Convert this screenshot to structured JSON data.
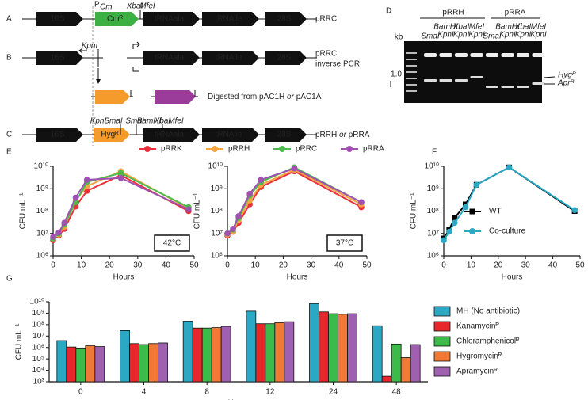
{
  "panel_labels": [
    "A",
    "B",
    "C",
    "D",
    "E",
    "F",
    "G"
  ],
  "diagram": {
    "row_a": {
      "genes": [
        "16S",
        "Cmᴿ",
        "tRNAala",
        "tRNAile",
        "28S"
      ],
      "promoter": "P",
      "promoter_sub": "Cm",
      "sites": [
        "XbaI",
        "MfeI"
      ],
      "plasmid": [
        "pRRC"
      ]
    },
    "row_b": {
      "genes": [
        "16S",
        "tRNAala",
        "tRNAile",
        "28S"
      ],
      "site": "KpnI",
      "plasmid": [
        "pRRC",
        "inverse PCR"
      ]
    },
    "inserts": [
      {
        "gene": "Hygᴿ",
        "sites": [
          "KpnI",
          "XbaI"
        ]
      },
      {
        "gene": "Aprᴿ",
        "sites": [
          "KpnI",
          "XbaI"
        ]
      }
    ],
    "or": "or",
    "note": [
      "Digested from pAC1H ",
      "or",
      " pAC1A"
    ],
    "row_c": {
      "genes": [
        "16S",
        "Hygᴿ",
        "tRNAala",
        "tRNAile",
        "28S"
      ],
      "sites_left": [
        "KpnI",
        "SmaI"
      ],
      "sites_right": [
        "SmaI",
        "BamHI",
        "XbaI",
        "MfeI"
      ],
      "plasmid": [
        "pRRH ",
        "or",
        " pRRA"
      ]
    }
  },
  "gel": {
    "groups": [
      "pRRH",
      "pRRA"
    ],
    "lanes": [
      [
        "SmaI"
      ],
      [
        "BamHI",
        "KpnI"
      ],
      [
        "XbaI",
        "KpnI"
      ],
      [
        "MfeI",
        "KpnI"
      ],
      [
        "SmaI"
      ],
      [
        "BamHI",
        "KpnI"
      ],
      [
        "XbaI",
        "KpnI"
      ],
      [
        "MfeI",
        "KpnI"
      ]
    ],
    "kb": "kb",
    "marker": "1.0",
    "band_labels": [
      "Hygᴿ",
      "Aprᴿ"
    ]
  },
  "chart_data": [
    {
      "type": "line",
      "y_label": "CFU mL⁻¹",
      "x_label": "Hours",
      "annotation": "42°C",
      "log_y": true,
      "legend": "top",
      "x": [
        0,
        2,
        4,
        8,
        12,
        24,
        48
      ],
      "xlim": [
        0,
        50
      ],
      "xticks": [
        0,
        10,
        20,
        30,
        40,
        50
      ],
      "ylim": [
        1000000,
        10000000000
      ],
      "yticks": [
        {
          "value": 1000000,
          "label": "10⁶"
        },
        {
          "value": 10000000,
          "label": "10⁷"
        },
        {
          "value": 100000000,
          "label": "10⁸"
        },
        {
          "value": 1000000000,
          "label": "10⁹"
        },
        {
          "value": 10000000000,
          "label": "10¹⁰"
        }
      ],
      "series": [
        {
          "name": "pRRK",
          "color": "#e8303a",
          "values": [
            5000000,
            8000000,
            16000000,
            160000000,
            800000000,
            4000000000,
            100000000
          ]
        },
        {
          "name": "pRRH",
          "color": "#f4a640",
          "values": [
            6000000,
            9000000,
            20000000,
            300000000,
            1300000000,
            6000000000,
            130000000
          ]
        },
        {
          "name": "pRRC",
          "color": "#4cbb4c",
          "values": [
            6000000,
            10000000,
            25000000,
            250000000,
            2000000000,
            5000000000,
            150000000
          ]
        },
        {
          "name": "pRRA",
          "color": "#a050b0",
          "values": [
            7000000,
            11000000,
            30000000,
            400000000,
            2500000000,
            3000000000,
            120000000
          ]
        }
      ]
    },
    {
      "type": "line",
      "y_label": "CFU mL⁻¹",
      "x_label": "Hours",
      "annotation": "37°C",
      "log_y": true,
      "x": [
        0,
        2,
        4,
        8,
        12,
        24,
        48
      ],
      "xlim": [
        0,
        50
      ],
      "xticks": [
        0,
        10,
        20,
        30,
        40,
        50
      ],
      "ylim": [
        1000000,
        10000000000
      ],
      "yticks": [
        {
          "value": 1000000,
          "label": "10⁶"
        },
        {
          "value": 10000000,
          "label": "10⁷"
        },
        {
          "value": 100000000,
          "label": "10⁸"
        },
        {
          "value": 1000000000,
          "label": "10⁹"
        },
        {
          "value": 10000000000,
          "label": "10¹⁰"
        }
      ],
      "series": [
        {
          "color": "#e8303a",
          "values": [
            8000000,
            12000000,
            30000000,
            200000000,
            1200000000,
            6000000000,
            150000000
          ]
        },
        {
          "color": "#f4a640",
          "values": [
            9000000,
            13000000,
            40000000,
            300000000,
            1500000000,
            7000000000,
            200000000
          ]
        },
        {
          "color": "#4cbb4c",
          "values": [
            10000000,
            15000000,
            50000000,
            500000000,
            2000000000,
            9000000000,
            250000000
          ]
        },
        {
          "color": "#a050b0",
          "values": [
            10000000,
            16000000,
            60000000,
            600000000,
            2500000000,
            8000000000,
            250000000
          ]
        }
      ]
    },
    {
      "type": "line",
      "y_label": "CFU mL⁻¹",
      "x_label": "Hours",
      "log_y": true,
      "legend": "inside",
      "x": [
        0,
        2,
        4,
        8,
        12,
        24,
        48
      ],
      "xlim": [
        0,
        50
      ],
      "xticks": [
        0,
        10,
        20,
        30,
        40,
        50
      ],
      "ylim": [
        1000000,
        10000000000
      ],
      "yticks": [
        {
          "value": 1000000,
          "label": "10⁶"
        },
        {
          "value": 10000000,
          "label": "10⁷"
        },
        {
          "value": 100000000,
          "label": "10⁸"
        },
        {
          "value": 1000000000,
          "label": "10⁹"
        },
        {
          "value": 10000000000,
          "label": "10¹⁰"
        }
      ],
      "series": [
        {
          "name": "WT",
          "color": "#000000",
          "marker": "square",
          "values": [
            6000000,
            15000000,
            50000000,
            200000000,
            1500000000,
            9000000000,
            100000000
          ]
        },
        {
          "name": "Co-culture",
          "color": "#2aa8c4",
          "marker": "circle",
          "values": [
            5000000,
            12000000,
            30000000,
            150000000,
            1500000000,
            9000000000,
            110000000
          ]
        }
      ]
    },
    {
      "type": "bar",
      "y_label": "CFU mL⁻¹",
      "x_label": "Hours",
      "log_y": true,
      "legend": "right",
      "categories": [
        "0",
        "4",
        "8",
        "12",
        "24",
        "48"
      ],
      "ylim": [
        1000,
        10000000000
      ],
      "yticks": [
        {
          "value": 1000,
          "label": "10³"
        },
        {
          "value": 10000,
          "label": "10⁴"
        },
        {
          "value": 100000,
          "label": "10⁵"
        },
        {
          "value": 1000000,
          "label": "10⁶"
        },
        {
          "value": 10000000,
          "label": "10⁷"
        },
        {
          "value": 100000000,
          "label": "10⁸"
        },
        {
          "value": 1000000000,
          "label": "10⁹"
        },
        {
          "value": 10000000000,
          "label": "10¹⁰"
        }
      ],
      "series": [
        {
          "name": "MH (No antibiotic)",
          "color": "#2aa8c4",
          "values": [
            4000000,
            30000000,
            200000000,
            1500000000,
            7000000000,
            80000000
          ]
        },
        {
          "name": "Kanamycinᴿ",
          "color": "#e8272d",
          "values": [
            1100000,
            2200000,
            50000000,
            120000000,
            1300000000,
            3000
          ]
        },
        {
          "name": "Chloramphenicolᴿ",
          "color": "#3dbb4a",
          "values": [
            900000,
            1800000,
            50000000,
            120000000,
            900000000,
            2000000
          ]
        },
        {
          "name": "Hygromycinᴿ",
          "color": "#f07a35",
          "values": [
            1400000,
            2200000,
            55000000,
            150000000,
            800000000,
            130000
          ]
        },
        {
          "name": "Apramycinᴿ",
          "color": "#a060b0",
          "values": [
            1200000,
            2500000,
            70000000,
            180000000,
            900000000,
            1800000
          ]
        }
      ]
    }
  ]
}
